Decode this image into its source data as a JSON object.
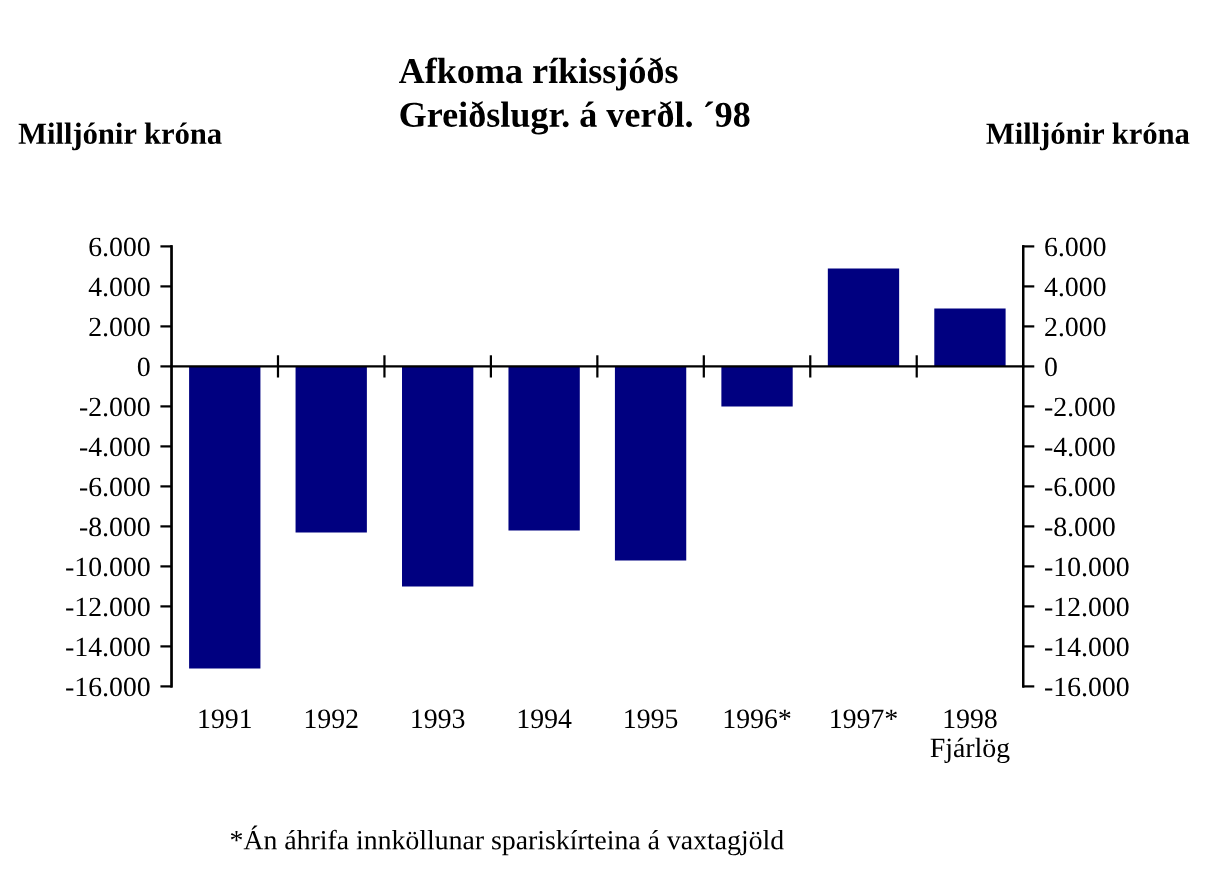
{
  "chart_data": {
    "type": "bar",
    "title": "Afkoma ríkissjóðs\nGreiðslugr. á verðl. ´98",
    "ylabel": "Milljónir króna",
    "y2label": "Milljónir króna",
    "categories": [
      "1991",
      "1992",
      "1993",
      "1994",
      "1995",
      "1996*",
      "1997*",
      "1998\nFjárlög"
    ],
    "values": [
      -15100,
      -8300,
      -11000,
      -8200,
      -9700,
      -2000,
      4900,
      2900
    ],
    "color": "#000080",
    "ylim": [
      -16000,
      6000
    ],
    "yticks": [
      {
        "value": 6000,
        "label": "6.000"
      },
      {
        "value": 4000,
        "label": "4.000"
      },
      {
        "value": 2000,
        "label": "2.000"
      },
      0,
      {
        "value": -2000,
        "label": "-2.000"
      },
      {
        "value": -4000,
        "label": "-4.000"
      },
      {
        "value": -6000,
        "label": "-6.000"
      },
      {
        "value": -8000,
        "label": "-8.000"
      },
      {
        "value": -10000,
        "label": "-10.000"
      },
      {
        "value": -12000,
        "label": "-12.000"
      },
      {
        "value": -14000,
        "label": "-14.000"
      },
      {
        "value": -16000,
        "label": "-16.000"
      }
    ],
    "y2lim": [
      -16000,
      6000
    ],
    "y2ticks": [
      {
        "value": 6000,
        "label": "6.000"
      },
      {
        "value": 4000,
        "label": "4.000"
      },
      {
        "value": 2000,
        "label": "2.000"
      },
      0,
      {
        "value": -2000,
        "label": "-2.000"
      },
      {
        "value": -4000,
        "label": "-4.000"
      },
      {
        "value": -6000,
        "label": "-6.000"
      },
      {
        "value": -8000,
        "label": "-8.000"
      },
      {
        "value": -10000,
        "label": "-10.000"
      },
      {
        "value": -12000,
        "label": "-12.000"
      },
      {
        "value": -14000,
        "label": "-14.000"
      },
      {
        "value": -16000,
        "label": "-16.000"
      }
    ],
    "legend": false,
    "annotations": [
      "*Án áhrifa innköllunar spariskírteina á vaxtagjöld"
    ]
  }
}
